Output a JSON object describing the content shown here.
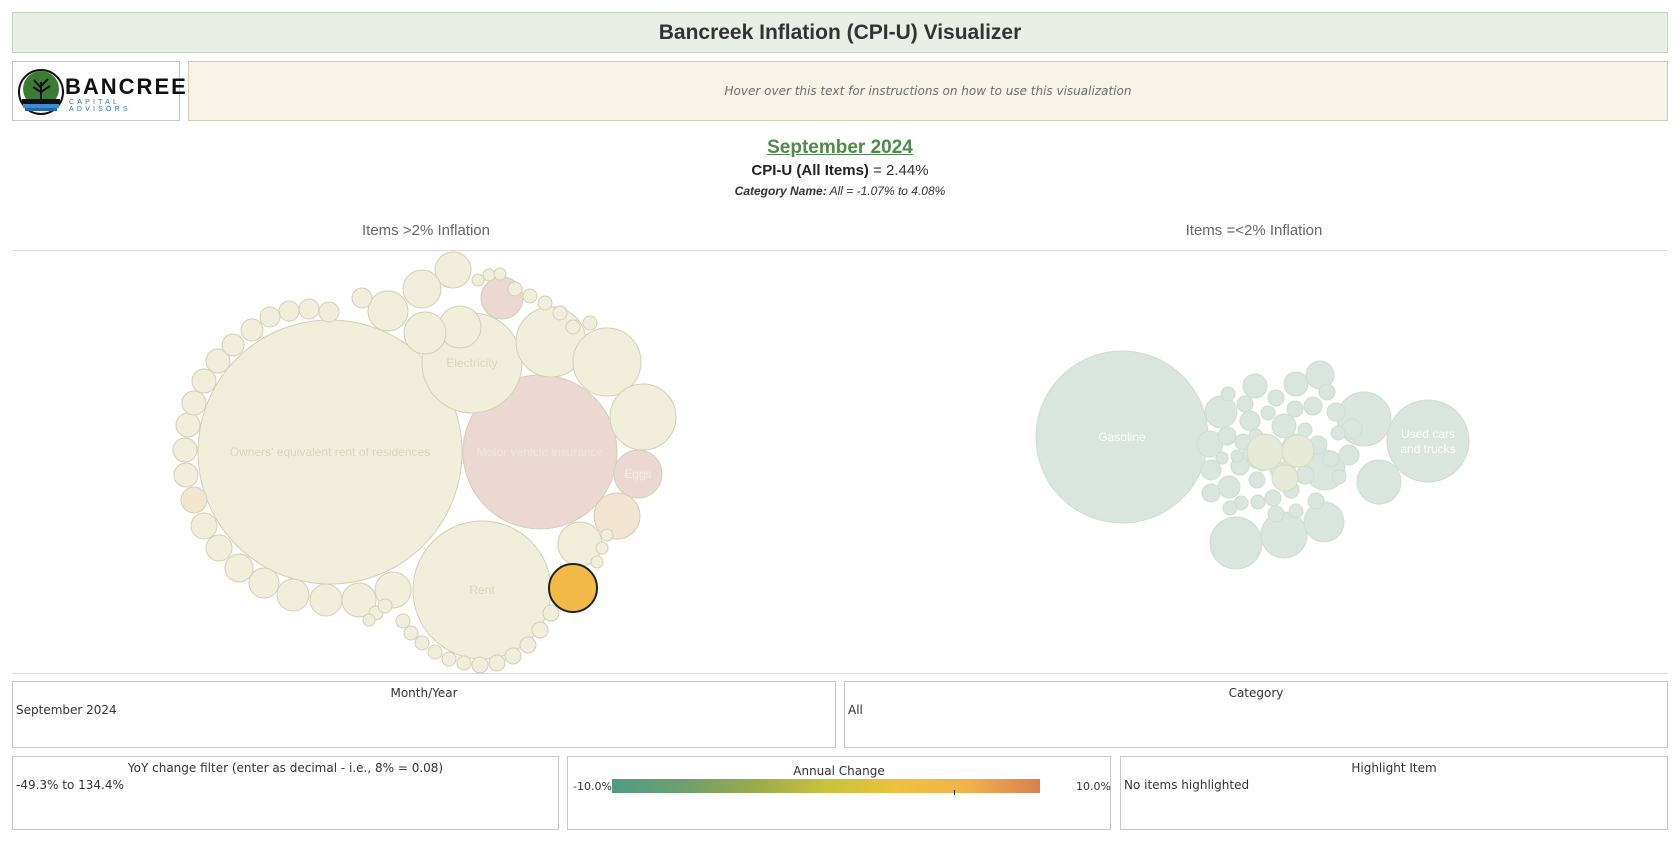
{
  "app": {
    "title": "Bancreek Inflation (CPI-U) Visualizer",
    "instructions": "Hover over this text for instructions on how to use this visualization"
  },
  "logo": {
    "name": "BANCREEK",
    "subtitle": "CAPITAL ADVISORS"
  },
  "summary": {
    "period": "September 2024",
    "cpi_label": "CPI-U (All Items)",
    "cpi_value": " = 2.44%",
    "category_label": "Category Name:",
    "category_value": " All = -1.07% to 4.08%"
  },
  "chart_data": [
    {
      "type": "bubble-pack",
      "title": "Items >2% Inflation",
      "labeled_bubbles": [
        "Owners' equivalent rent of residences",
        "Motor vehicle insurance",
        "Rent",
        "Electricity",
        "Eggs"
      ]
    },
    {
      "type": "bubble-pack",
      "title": "Items =<2% Inflation",
      "labeled_bubbles": [
        "Gasoline",
        "Used cars and trucks"
      ]
    }
  ],
  "filters": {
    "month_year": {
      "title": "Month/Year",
      "value": "September 2024"
    },
    "category": {
      "title": "Category",
      "value": "All"
    },
    "yoy": {
      "title": "YoY change filter (enter as decimal - i.e., 8% = 0.08)",
      "value": "-49.3% to 134.4%"
    },
    "legend": {
      "title": "Annual Change",
      "min": "-10.0%",
      "max": "10.0%"
    },
    "highlight": {
      "title": "Highlight Item",
      "value": "No items highlighted"
    }
  },
  "colors": {
    "above_fill": "#f1efdb",
    "hot_fill": "#ecd8d2",
    "warm_fill": "#f1e5d0",
    "below_fill": "#d9e5de",
    "selected_fill": "#f2bb47",
    "bubble_stroke": "#d2cfb8",
    "period": "#4e8a4a"
  }
}
